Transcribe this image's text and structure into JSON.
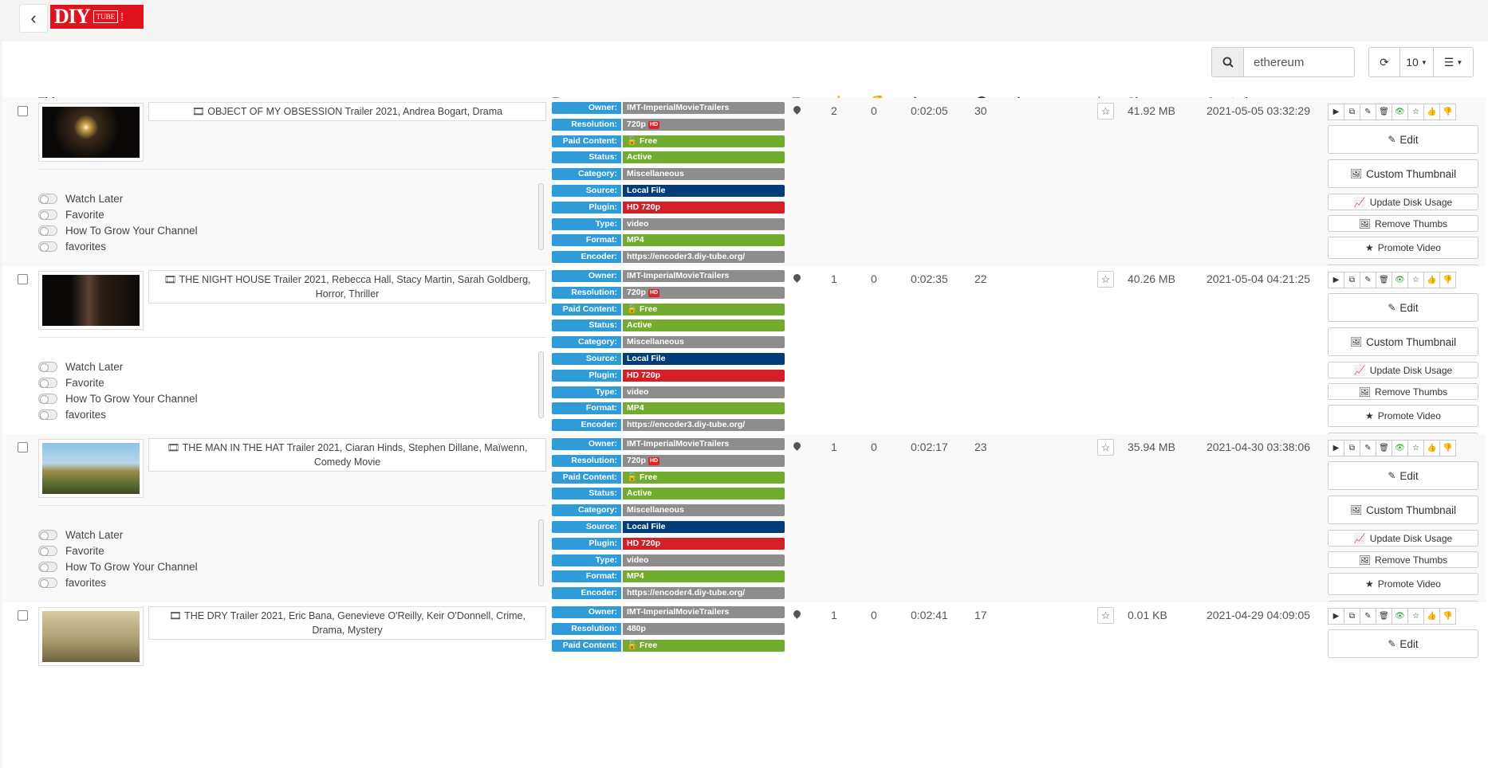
{
  "header": {
    "logo_text": "DIY",
    "logo_sub": "TUBE",
    "back_icon": "chevron-left-icon"
  },
  "toolbar": {
    "search_value": "ethereum",
    "page_size": "10",
    "refresh_icon": "refresh-icon",
    "columns_icon": "list-columns-icon"
  },
  "columns": {
    "title": "Title",
    "tags": "Tags",
    "size": "Size",
    "created": "Created"
  },
  "labels": {
    "edit": "Edit",
    "custom_thumbnail": "Custom Thumbnail",
    "update_disk": "Update Disk Usage",
    "remove_thumbs": "Remove Thumbs",
    "promote": "Promote Video"
  },
  "tag_keys": [
    "Owner:",
    "Resolution:",
    "Paid Content:",
    "Status:",
    "Category:",
    "Source:",
    "Plugin:",
    "Type:",
    "Format:",
    "Encoder:"
  ],
  "colors": {
    "blue_key": "#2f9bd8",
    "gray": "#8d8d8d",
    "green": "#72ac2f",
    "navy": "#003d79",
    "red": "#d41f27"
  },
  "rows": [
    {
      "title": "OBJECT OF MY OBSESSION Trailer 2021, Andrea Bogart, Drama",
      "likes": "2",
      "dislikes": "0",
      "duration": "0:02:05",
      "views": "30",
      "size": "41.92 MB",
      "created": "2021-05-05 03:32:29",
      "lists": [
        "Watch Later",
        "Favorite",
        "How To Grow Your Channel",
        "favorites"
      ],
      "tags": {
        "owner": "IMT-ImperialMovieTrailers",
        "resolution": "720p",
        "hd": "HD",
        "paid": "Free",
        "status": "Active",
        "category": "Miscellaneous",
        "source": "Local File",
        "plugin": "HD 720p",
        "type": "video",
        "format": "MP4",
        "encoder": "https://encoder3.diy-tube.org/"
      }
    },
    {
      "title": "THE NIGHT HOUSE Trailer 2021, Rebecca Hall, Stacy Martin, Sarah Goldberg, Horror, Thriller",
      "likes": "1",
      "dislikes": "0",
      "duration": "0:02:35",
      "views": "22",
      "size": "40.26 MB",
      "created": "2021-05-04 04:21:25",
      "lists": [
        "Watch Later",
        "Favorite",
        "How To Grow Your Channel",
        "favorites"
      ],
      "tags": {
        "owner": "IMT-ImperialMovieTrailers",
        "resolution": "720p",
        "hd": "HD",
        "paid": "Free",
        "status": "Active",
        "category": "Miscellaneous",
        "source": "Local File",
        "plugin": "HD 720p",
        "type": "video",
        "format": "MP4",
        "encoder": "https://encoder3.diy-tube.org/"
      }
    },
    {
      "title": "THE MAN IN THE HAT Trailer 2021, Ciaran Hinds, Stephen Dillane, Maïwenn, Comedy Movie",
      "likes": "1",
      "dislikes": "0",
      "duration": "0:02:17",
      "views": "23",
      "size": "35.94 MB",
      "created": "2021-04-30 03:38:06",
      "lists": [
        "Watch Later",
        "Favorite",
        "How To Grow Your Channel",
        "favorites"
      ],
      "tags": {
        "owner": "IMT-ImperialMovieTrailers",
        "resolution": "720p",
        "hd": "HD",
        "paid": "Free",
        "status": "Active",
        "category": "Miscellaneous",
        "source": "Local File",
        "plugin": "HD 720p",
        "type": "video",
        "format": "MP4",
        "encoder": "https://encoder4.diy-tube.org/"
      }
    },
    {
      "title": "THE DRY Trailer 2021, Eric Bana, Genevieve O'Reilly, Keir O'Donnell, Crime, Drama, Mystery",
      "likes": "1",
      "dislikes": "0",
      "duration": "0:02:41",
      "views": "17",
      "size": "0.01 KB",
      "created": "2021-04-29 04:09:05",
      "lists": [],
      "tags": {
        "owner": "IMT-ImperialMovieTrailers",
        "resolution": "480p",
        "hd": "",
        "paid": "Free"
      }
    }
  ]
}
